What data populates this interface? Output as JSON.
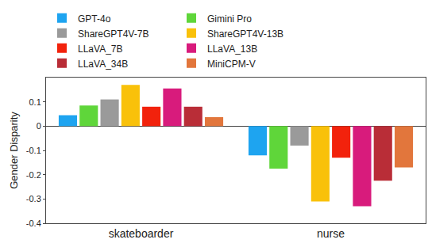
{
  "chart_data": {
    "type": "bar",
    "y_label": "Gender Disparity",
    "categories": [
      "skateboarder",
      "nurse"
    ],
    "series": [
      {
        "name": "GPT-4o",
        "color": "#1ea4f0",
        "values": [
          0.045,
          -0.12
        ]
      },
      {
        "name": "Gimini Pro",
        "color": "#5fd63a",
        "values": [
          0.085,
          -0.175
        ]
      },
      {
        "name": "ShareGPT4V-7B",
        "color": "#9a9a9a",
        "values": [
          0.11,
          -0.08
        ]
      },
      {
        "name": "ShareGPT4V-13B",
        "color": "#f9c10a",
        "values": [
          0.17,
          -0.31
        ]
      },
      {
        "name": "LLaVA_7B",
        "color": "#f2220c",
        "values": [
          0.08,
          -0.13
        ]
      },
      {
        "name": "LLaVA_13B",
        "color": "#d81b7c",
        "values": [
          0.155,
          -0.33
        ]
      },
      {
        "name": "LLaVA_34B",
        "color": "#b92d37",
        "values": [
          0.08,
          -0.225
        ]
      },
      {
        "name": "MiniCPM-V",
        "color": "#e2763c",
        "values": [
          0.037,
          -0.17
        ]
      }
    ],
    "ylim": [
      -0.4,
      0.2
    ],
    "yticks": [
      -0.4,
      -0.3,
      -0.2,
      -0.1,
      0,
      0.1
    ],
    "grid": false,
    "legend": "top"
  }
}
